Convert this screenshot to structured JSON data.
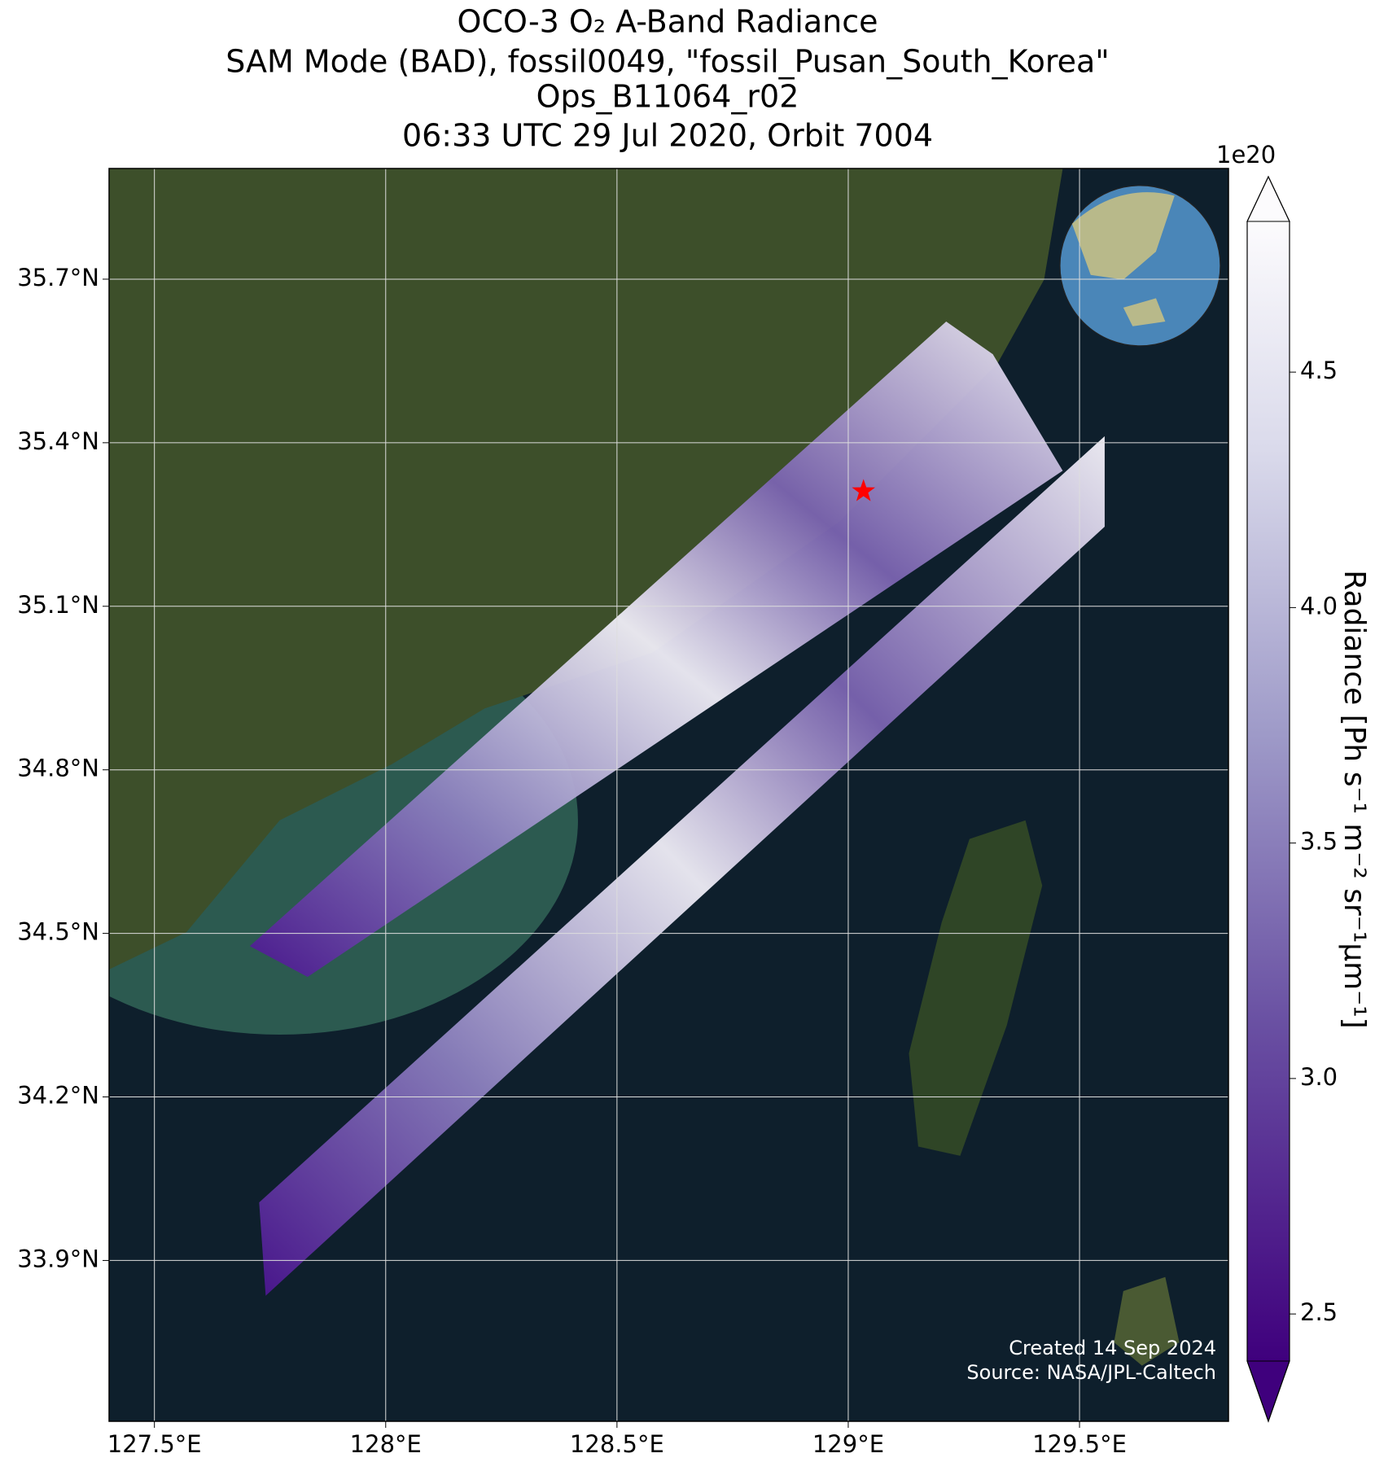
{
  "chart_data": {
    "type": "map",
    "title": [
      "OCO-3 O₂ A-Band Radiance",
      "SAM Mode (BAD), fossil0049, \"fossil_Pusan_South_Korea\"",
      "Ops_B11064_r02",
      "06:33 UTC 29 Jul 2020, Orbit 7004"
    ],
    "xlim": [
      127.402,
      129.822
    ],
    "ylim": [
      33.605,
      35.903
    ],
    "xticks": [
      {
        "value": 127.5,
        "label": "127.5°E"
      },
      {
        "value": 128,
        "label": "128°E"
      },
      {
        "value": 128.5,
        "label": "128.5°E"
      },
      {
        "value": 129,
        "label": "129°E"
      },
      {
        "value": 129.5,
        "label": "129.5°E"
      }
    ],
    "yticks": [
      {
        "value": 33.9,
        "label": "33.9°N"
      },
      {
        "value": 34.2,
        "label": "34.2°N"
      },
      {
        "value": 34.5,
        "label": "34.5°N"
      },
      {
        "value": 34.8,
        "label": "34.8°N"
      },
      {
        "value": 35.1,
        "label": "35.1°N"
      },
      {
        "value": 35.4,
        "label": "35.4°N"
      },
      {
        "value": 35.7,
        "label": "35.7°N"
      }
    ],
    "grid": true,
    "target": {
      "lon": 129.033,
      "lat": 35.311,
      "color": "#ff0000"
    },
    "colorbar": {
      "label": "Radiance [Ph s⁻¹ m⁻² sr⁻¹μm⁻¹]",
      "offset_text": "1e20",
      "lim": [
        2.4,
        4.82
      ],
      "ticks": [
        2.5,
        {
          "value": 3,
          "label": "3.0"
        },
        3.5,
        {
          "value": 4,
          "label": "4.0"
        },
        4.5
      ]
    },
    "credits": [
      "Created 14 Sep 2024",
      "Source: NASA/JPL-Caltech"
    ]
  }
}
